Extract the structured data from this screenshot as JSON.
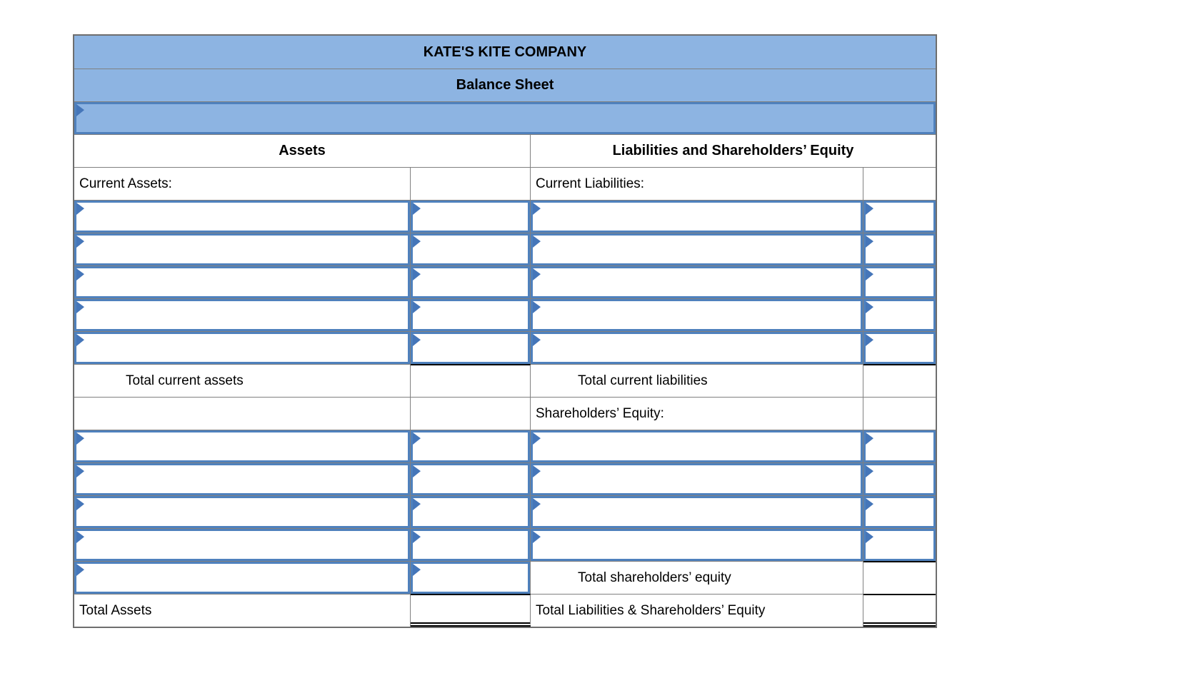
{
  "header": {
    "company_name": "KATE'S KITE COMPANY",
    "statement_title": "Balance Sheet",
    "date_input_value": ""
  },
  "section_headers": {
    "assets": "Assets",
    "liabilities_equity": "Liabilities and Shareholders’ Equity"
  },
  "assets": {
    "current_section_label": "Current Assets:",
    "total_current_label": "Total current assets",
    "total_label": "Total Assets"
  },
  "liabilities": {
    "current_section_label": "Current Liabilities:",
    "total_current_label": "Total current liabilities"
  },
  "equity": {
    "section_label": "Shareholders’ Equity:",
    "total_label": "Total shareholders’ equity",
    "grand_total_label": "Total Liabilities & Shareholders’ Equity"
  },
  "inputs": {
    "value": ""
  },
  "colors": {
    "header_fill": "#8db4e2",
    "input_border": "#4f81bd",
    "flag": "#4576b9",
    "grid_line": "#808080",
    "sum_line": "#000000"
  }
}
